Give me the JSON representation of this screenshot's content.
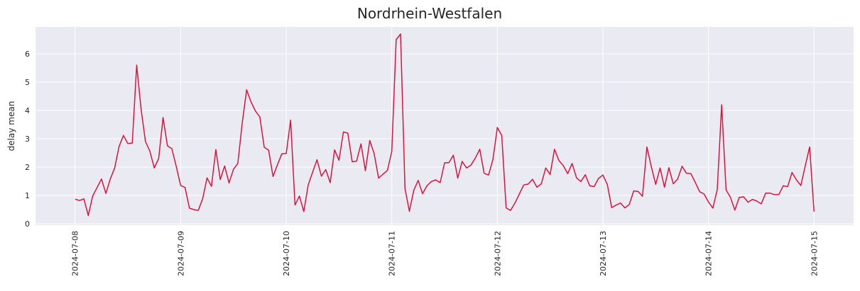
{
  "chart_data": {
    "type": "line",
    "title": "Nordrhein-Westfalen",
    "xlabel": "",
    "ylabel": "delay mean",
    "x_ticks": [
      "2024-07-08",
      "2024-07-09",
      "2024-07-10",
      "2024-07-11",
      "2024-07-12",
      "2024-07-13",
      "2024-07-14",
      "2024-07-15"
    ],
    "y_ticks": [
      0,
      1,
      2,
      3,
      4,
      5,
      6
    ],
    "xlim": [
      "2024-07-07 15:00",
      "2024-07-15 09:00"
    ],
    "ylim": [
      -0.05,
      6.95
    ],
    "grid": true,
    "colors": {
      "background": "#eaeaf2",
      "grid": "#ffffff",
      "line": "#dc143c"
    },
    "series": [
      {
        "x": [
          "2024-07-08 00:00",
          "2024-07-08 01:00",
          "2024-07-08 02:00",
          "2024-07-08 03:00",
          "2024-07-08 04:00",
          "2024-07-08 05:00",
          "2024-07-08 06:00",
          "2024-07-08 07:00",
          "2024-07-08 08:00",
          "2024-07-08 09:00",
          "2024-07-08 10:00",
          "2024-07-08 11:00",
          "2024-07-08 12:00",
          "2024-07-08 13:00",
          "2024-07-08 14:00",
          "2024-07-08 15:00",
          "2024-07-08 16:00",
          "2024-07-08 17:00",
          "2024-07-08 18:00",
          "2024-07-08 19:00",
          "2024-07-08 20:00",
          "2024-07-08 21:00",
          "2024-07-08 22:00",
          "2024-07-08 23:00",
          "2024-07-09 00:00",
          "2024-07-09 01:00",
          "2024-07-09 02:00",
          "2024-07-09 03:00",
          "2024-07-09 04:00",
          "2024-07-09 05:00",
          "2024-07-09 06:00",
          "2024-07-09 07:00",
          "2024-07-09 08:00",
          "2024-07-09 09:00",
          "2024-07-09 10:00",
          "2024-07-09 11:00",
          "2024-07-09 12:00",
          "2024-07-09 13:00",
          "2024-07-09 14:00",
          "2024-07-09 15:00",
          "2024-07-09 16:00",
          "2024-07-09 17:00",
          "2024-07-09 18:00",
          "2024-07-09 19:00",
          "2024-07-09 20:00",
          "2024-07-09 21:00",
          "2024-07-09 22:00",
          "2024-07-09 23:00",
          "2024-07-10 00:00",
          "2024-07-10 01:00",
          "2024-07-10 02:00",
          "2024-07-10 03:00",
          "2024-07-10 04:00",
          "2024-07-10 05:00",
          "2024-07-10 06:00",
          "2024-07-10 07:00",
          "2024-07-10 08:00",
          "2024-07-10 09:00",
          "2024-07-10 10:00",
          "2024-07-10 11:00",
          "2024-07-10 12:00",
          "2024-07-10 13:00",
          "2024-07-10 14:00",
          "2024-07-10 15:00",
          "2024-07-10 16:00",
          "2024-07-10 17:00",
          "2024-07-10 18:00",
          "2024-07-10 19:00",
          "2024-07-10 20:00",
          "2024-07-10 21:00",
          "2024-07-10 22:00",
          "2024-07-10 23:00",
          "2024-07-11 00:00",
          "2024-07-11 01:00",
          "2024-07-11 02:00",
          "2024-07-11 03:00",
          "2024-07-11 04:00",
          "2024-07-11 05:00",
          "2024-07-11 06:00",
          "2024-07-11 07:00",
          "2024-07-11 08:00",
          "2024-07-11 09:00",
          "2024-07-11 10:00",
          "2024-07-11 11:00",
          "2024-07-11 12:00",
          "2024-07-11 13:00",
          "2024-07-11 14:00",
          "2024-07-11 15:00",
          "2024-07-11 16:00",
          "2024-07-11 17:00",
          "2024-07-11 18:00",
          "2024-07-11 19:00",
          "2024-07-11 20:00",
          "2024-07-11 21:00",
          "2024-07-11 22:00",
          "2024-07-11 23:00",
          "2024-07-12 00:00",
          "2024-07-12 01:00",
          "2024-07-12 02:00",
          "2024-07-12 03:00",
          "2024-07-12 04:00",
          "2024-07-12 05:00",
          "2024-07-12 06:00",
          "2024-07-12 07:00",
          "2024-07-12 08:00",
          "2024-07-12 09:00",
          "2024-07-12 10:00",
          "2024-07-12 11:00",
          "2024-07-12 12:00",
          "2024-07-12 13:00",
          "2024-07-12 14:00",
          "2024-07-12 15:00",
          "2024-07-12 16:00",
          "2024-07-12 17:00",
          "2024-07-12 18:00",
          "2024-07-12 19:00",
          "2024-07-12 20:00",
          "2024-07-12 21:00",
          "2024-07-12 22:00",
          "2024-07-12 23:00",
          "2024-07-13 00:00",
          "2024-07-13 01:00",
          "2024-07-13 02:00",
          "2024-07-13 03:00",
          "2024-07-13 04:00",
          "2024-07-13 05:00",
          "2024-07-13 06:00",
          "2024-07-13 07:00",
          "2024-07-13 08:00",
          "2024-07-13 09:00",
          "2024-07-13 10:00",
          "2024-07-13 11:00",
          "2024-07-13 12:00",
          "2024-07-13 13:00",
          "2024-07-13 14:00",
          "2024-07-13 15:00",
          "2024-07-13 16:00",
          "2024-07-13 17:00",
          "2024-07-13 18:00",
          "2024-07-13 19:00",
          "2024-07-13 20:00",
          "2024-07-13 21:00",
          "2024-07-13 22:00",
          "2024-07-13 23:00",
          "2024-07-14 00:00",
          "2024-07-14 01:00",
          "2024-07-14 02:00",
          "2024-07-14 03:00",
          "2024-07-14 04:00",
          "2024-07-14 05:00",
          "2024-07-14 06:00",
          "2024-07-14 07:00",
          "2024-07-14 08:00",
          "2024-07-14 09:00",
          "2024-07-14 10:00",
          "2024-07-14 11:00",
          "2024-07-14 12:00",
          "2024-07-14 13:00",
          "2024-07-14 14:00",
          "2024-07-14 15:00",
          "2024-07-14 16:00",
          "2024-07-14 17:00",
          "2024-07-14 18:00",
          "2024-07-14 19:00",
          "2024-07-14 20:00",
          "2024-07-14 21:00",
          "2024-07-14 22:00",
          "2024-07-14 23:00",
          "2024-07-15 00:00"
        ],
        "y": [
          0.87,
          0.82,
          0.88,
          0.29,
          0.98,
          1.28,
          1.58,
          1.07,
          1.58,
          1.97,
          2.73,
          3.12,
          2.83,
          2.85,
          5.6,
          4.05,
          2.9,
          2.56,
          1.97,
          2.3,
          3.75,
          2.75,
          2.65,
          2.02,
          1.35,
          1.28,
          0.55,
          0.5,
          0.47,
          0.88,
          1.62,
          1.32,
          2.62,
          1.56,
          2.04,
          1.44,
          1.92,
          2.13,
          3.56,
          4.73,
          4.3,
          3.98,
          3.77,
          2.7,
          2.6,
          1.67,
          2.08,
          2.47,
          2.48,
          3.66,
          0.66,
          0.98,
          0.43,
          1.37,
          1.82,
          2.26,
          1.68,
          1.91,
          1.45,
          2.61,
          2.24,
          3.24,
          3.2,
          2.19,
          2.21,
          2.82,
          1.87,
          2.94,
          2.47,
          1.61,
          1.75,
          1.88,
          2.55,
          6.5,
          6.7,
          1.24,
          0.44,
          1.18,
          1.53,
          1.06,
          1.34,
          1.49,
          1.55,
          1.45,
          2.15,
          2.16,
          2.42,
          1.61,
          2.2,
          1.97,
          2.07,
          2.32,
          2.63,
          1.78,
          1.72,
          2.27,
          3.4,
          3.12,
          0.56,
          0.47,
          0.73,
          1.05,
          1.37,
          1.4,
          1.57,
          1.29,
          1.41,
          1.97,
          1.74,
          2.63,
          2.23,
          2.05,
          1.77,
          2.13,
          1.62,
          1.49,
          1.73,
          1.34,
          1.31,
          1.6,
          1.72,
          1.39,
          0.57,
          0.66,
          0.73,
          0.56,
          0.68,
          1.16,
          1.14,
          0.97,
          2.71,
          2.02,
          1.39,
          1.97,
          1.29,
          1.98,
          1.41,
          1.58,
          2.03,
          1.78,
          1.77,
          1.46,
          1.13,
          1.05,
          0.77,
          0.55,
          1.21,
          4.2,
          1.2,
          0.93,
          0.48,
          0.93,
          0.95,
          0.76,
          0.86,
          0.8,
          0.7,
          1.08,
          1.08,
          1.03,
          1.03,
          1.34,
          1.31,
          1.81,
          1.55,
          1.35,
          2.04,
          2.71,
          0.43
        ]
      }
    ]
  }
}
